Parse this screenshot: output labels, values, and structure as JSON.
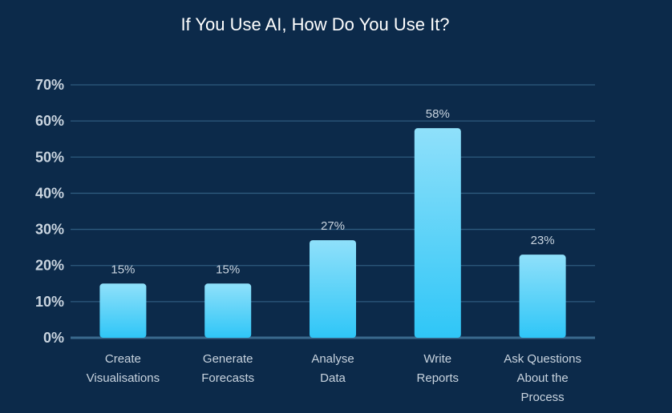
{
  "chart_data": {
    "type": "bar",
    "title": "If You Use AI, How Do You Use It?",
    "xlabel": "",
    "ylabel": "",
    "categories": [
      [
        "Create",
        "Visualisations"
      ],
      [
        "Generate",
        "Forecasts"
      ],
      [
        "Analyse",
        "Data"
      ],
      [
        "Write",
        "Reports"
      ],
      [
        "Ask Questions",
        "About the",
        "Process"
      ]
    ],
    "values": [
      15,
      15,
      27,
      58,
      23
    ],
    "data_labels": [
      "15%",
      "15%",
      "27%",
      "58%",
      "23%"
    ],
    "ylim": [
      0,
      70
    ],
    "yticks": [
      "0%",
      "10%",
      "20%",
      "30%",
      "40%",
      "50%",
      "60%",
      "70%"
    ],
    "grid": true,
    "legend": "none",
    "colors": {
      "background": "#0c2a4a",
      "bar_top": "#8fe0fa",
      "bar_bottom": "#2fc6f7",
      "grid": "#2e5a7e",
      "text": "#c9d4df"
    }
  }
}
